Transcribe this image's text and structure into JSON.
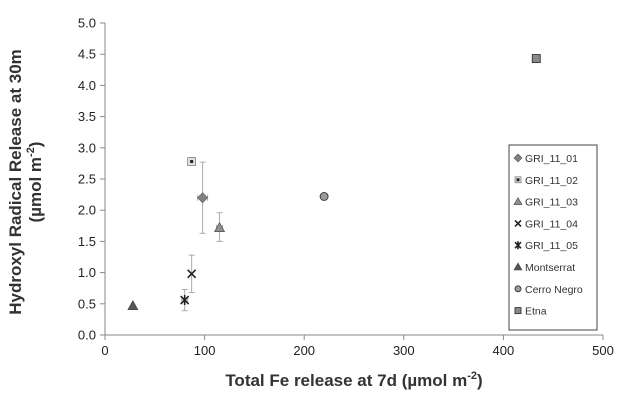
{
  "chart_data": {
    "type": "scatter",
    "xlabel": "Total Fe release at 7d",
    "xlabel_unit_prefix": " (",
    "xlabel_unit": "µmol m",
    "xlabel_unit_sup": "-2",
    "xlabel_unit_suffix": ")",
    "ylabel_line1": "Hydroxyl Radical Release at 30m",
    "ylabel_line2_prefix": "(",
    "ylabel_line2_unit": "µmol m",
    "ylabel_line2_sup": "-2",
    "ylabel_line2_suffix": ")",
    "xlim": [
      0,
      500
    ],
    "ylim": [
      0,
      5
    ],
    "xticks": [
      0,
      100,
      200,
      300,
      400,
      500
    ],
    "yticks": [
      "0.0",
      "0.5",
      "1.0",
      "1.5",
      "2.0",
      "2.5",
      "3.0",
      "3.5",
      "4.0",
      "4.5",
      "5.0"
    ],
    "grid": false,
    "legend_position": "right",
    "series": [
      {
        "name": "GRI_11_01",
        "marker": "diamond",
        "color": "#808080",
        "x": 98,
        "y": 2.2,
        "xerr": 5,
        "yerr_low": 0.57,
        "yerr_high": 0.57
      },
      {
        "name": "GRI_11_02",
        "marker": "square-dot",
        "color": "#606060",
        "x": 87,
        "y": 2.78,
        "xerr": 3,
        "yerr_low": 0.06,
        "yerr_high": 0.06
      },
      {
        "name": "GRI_11_03",
        "marker": "triangle",
        "color": "#909090",
        "x": 115,
        "y": 1.72,
        "xerr": 3,
        "yerr_low": 0.22,
        "yerr_high": 0.24
      },
      {
        "name": "GRI_11_04",
        "marker": "x",
        "color": "#222222",
        "x": 87,
        "y": 0.98,
        "xerr": 0,
        "yerr_low": 0.3,
        "yerr_high": 0.3
      },
      {
        "name": "GRI_11_05",
        "marker": "star",
        "color": "#222222",
        "x": 80,
        "y": 0.56,
        "xerr": 3,
        "yerr_low": 0.17,
        "yerr_high": 0.17
      },
      {
        "name": "Montserrat",
        "marker": "triangle",
        "color": "#555555",
        "x": 28,
        "y": 0.47,
        "xerr": 0,
        "yerr_low": 0,
        "yerr_high": 0
      },
      {
        "name": "Cerro Negro",
        "marker": "circle",
        "color": "#9a9a9a",
        "x": 220,
        "y": 2.22,
        "xerr": 0,
        "yerr_low": 0,
        "yerr_high": 0
      },
      {
        "name": "Etna",
        "marker": "square",
        "color": "#8a8a8a",
        "x": 433,
        "y": 4.43,
        "xerr": 0,
        "yerr_low": 0,
        "yerr_high": 0
      }
    ]
  }
}
